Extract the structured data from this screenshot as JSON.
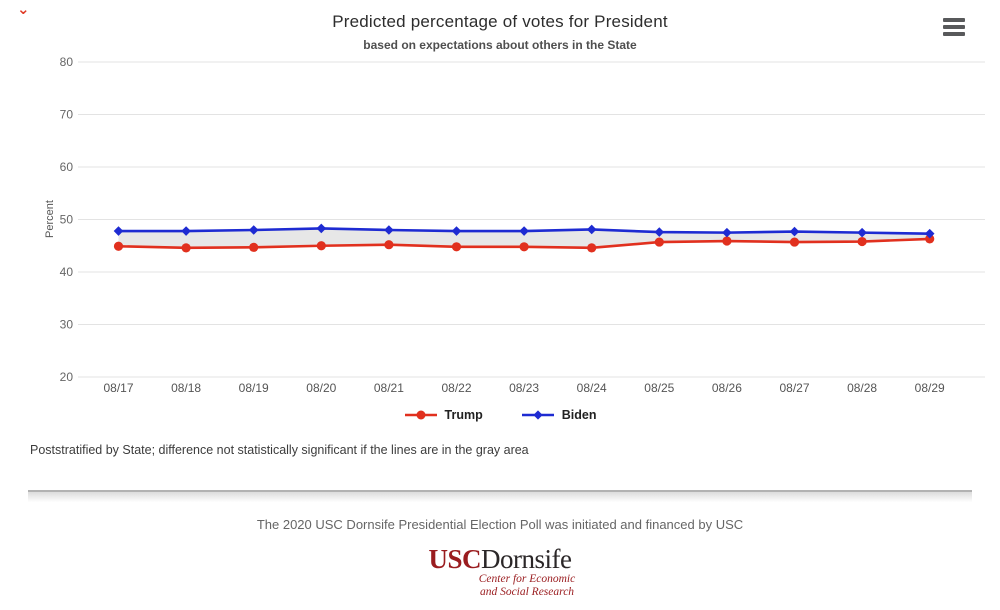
{
  "header": {
    "title": "Predicted percentage of votes for President",
    "subtitle": "based on expectations about others in the State"
  },
  "chart_data": {
    "type": "line",
    "title": "Predicted percentage of votes for President",
    "subtitle": "based on expectations about others in the State",
    "xlabel": "",
    "ylabel": "Percent",
    "ylim": [
      20,
      80
    ],
    "yticks": [
      20,
      30,
      40,
      50,
      60,
      70,
      80
    ],
    "grid": "horizontal",
    "legend_position": "bottom",
    "categories": [
      "08/17",
      "08/18",
      "08/19",
      "08/20",
      "08/21",
      "08/22",
      "08/23",
      "08/24",
      "08/25",
      "08/26",
      "08/27",
      "08/28",
      "08/29"
    ],
    "series": [
      {
        "name": "Trump",
        "color": "#e1301e",
        "marker": "circle",
        "values": [
          44.9,
          44.6,
          44.7,
          45.0,
          45.2,
          44.8,
          44.8,
          44.6,
          45.7,
          45.9,
          45.7,
          45.8,
          46.3
        ]
      },
      {
        "name": "Biden",
        "color": "#1e2bd2",
        "marker": "diamond",
        "values": [
          47.8,
          47.8,
          48.0,
          48.3,
          48.0,
          47.8,
          47.8,
          48.1,
          47.6,
          47.5,
          47.7,
          47.5,
          47.3
        ]
      }
    ],
    "band": {
      "between": [
        "Trump",
        "Biden"
      ],
      "color": "#e7e7e7",
      "meaning": "difference not statistically significant region"
    }
  },
  "footnote": "Poststratified by State; difference not statistically significant if the lines are in the gray area",
  "footer": {
    "credit": "The 2020 USC Dornsife Presidential Election Poll was initiated and financed by USC",
    "logo_usc": "USC",
    "logo_dornsife": "Dornsife",
    "logo_tagline_line1": "Center for Economic",
    "logo_tagline_line2": "and Social Research"
  },
  "colors": {
    "trump": "#e1301e",
    "biden": "#1e2bd2",
    "band": "#e7e7e7",
    "grid": "#e3e3e3",
    "tick_text": "#666666",
    "usc_cardinal": "#9a1c1f",
    "divider": "#b2b2b2"
  }
}
